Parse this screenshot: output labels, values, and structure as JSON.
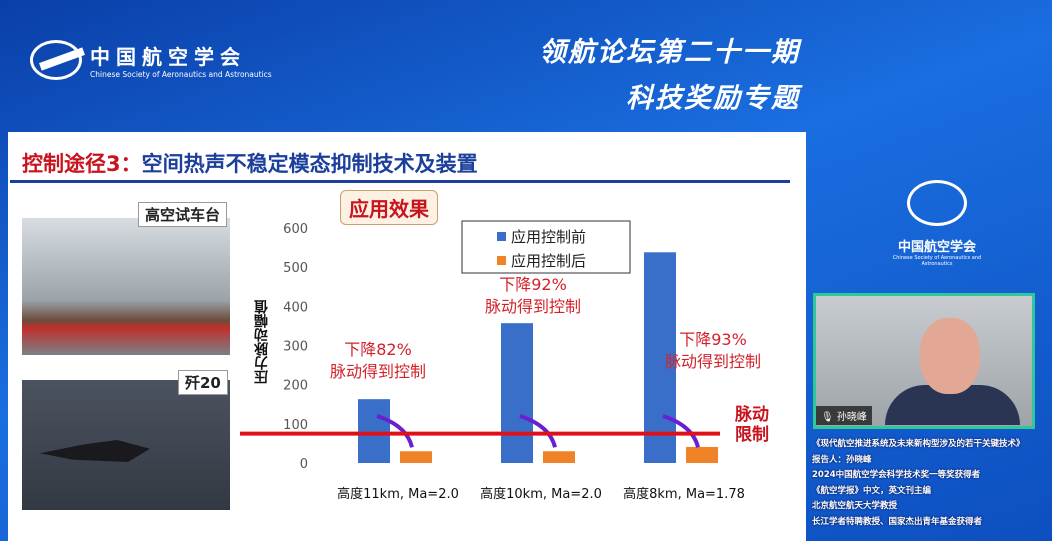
{
  "header": {
    "org_cn": "中国航空学会",
    "org_en": "Chinese Society of Aeronautics and Astronautics",
    "title1": "领航论坛第二十一期",
    "title2": "科技奖励专题"
  },
  "slide": {
    "title_prefix": "控制途径3：",
    "title_main": "空间热声不稳定模态抑制技术及装置",
    "photo1_label": "高空试车台",
    "photo2_label": "歼20",
    "badge": "应用效果",
    "limit_label": [
      "脉动",
      "限制"
    ]
  },
  "chart_data": {
    "type": "bar",
    "ylabel": "压力脉动幅值",
    "categories": [
      "高度11km, Ma=2.0",
      "高度10km, Ma=2.0",
      "高度8km, Ma=1.78"
    ],
    "ylim": [
      0,
      600
    ],
    "yticks": [
      "0",
      "100",
      "200",
      "300",
      "400",
      "500",
      "600"
    ],
    "series": [
      {
        "name": "应用控制前",
        "values": [
          163,
          357,
          538
        ],
        "color": "#3a6fc9"
      },
      {
        "name": "应用控制后",
        "values": [
          30,
          30,
          41
        ],
        "color": "#f08228"
      }
    ],
    "limit_line": 75,
    "limit_color": "#e0101a",
    "legend": "top-center",
    "annotations": [
      {
        "line1": "下降82%",
        "line2": "脉动得到控制"
      },
      {
        "line1": "下降92%",
        "line2": "脉动得到控制"
      },
      {
        "line1": "下降93%",
        "line2": "脉动得到控制"
      }
    ]
  },
  "sidebar": {
    "org_cn": "中国航空学会",
    "org_en": "Chinese Society of Aeronautics and Astronautics",
    "speaker_name": "孙晓峰",
    "info": [
      "《现代航空推进系统及未来新构型涉及的若干关键技术》",
      "报告人：孙晓峰",
      "2024中国航空学会科学技术奖一等奖获得者",
      "《航空学报》中文，英文刊主编",
      "北京航空航天大学教授",
      "长江学者特聘教授、国家杰出青年基金获得者"
    ]
  }
}
